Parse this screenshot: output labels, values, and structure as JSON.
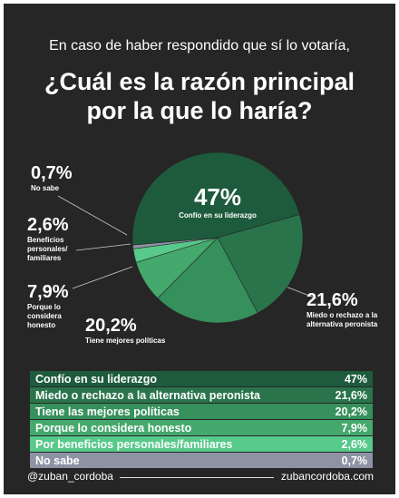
{
  "chart_data": {
    "type": "pie",
    "subtitle": "En caso de haber respondido que sí lo votaría,",
    "title": "¿Cuál es la razón principal por la que lo haría?",
    "categories": [
      "Confío en su liderazgo",
      "Miedo o rechazo a la alternativa peronista",
      "Tiene las mejores políticas",
      "Porque lo considera honesto",
      "Por beneficios personales/familiares",
      "No sabe"
    ],
    "slice_labels": [
      "Confío en su liderazgo",
      "Miedo o rechazo a la alternativa peronista",
      "Tiene mejores políticas",
      "Porque lo considera honesto",
      "Beneficios personales/ familiares",
      "No sabe"
    ],
    "values": [
      47,
      21.6,
      20.2,
      7.9,
      2.6,
      0.7
    ],
    "value_labels": [
      "47%",
      "21,6%",
      "20,2%",
      "7,9%",
      "2,6%",
      "0,7%"
    ],
    "colors": [
      "#1d5b3c",
      "#2a744c",
      "#36905c",
      "#45a86c",
      "#57c98a",
      "#8d93a3"
    ]
  },
  "footer": {
    "left": "@zuban_cordoba",
    "right": "zubancordoba.com"
  }
}
